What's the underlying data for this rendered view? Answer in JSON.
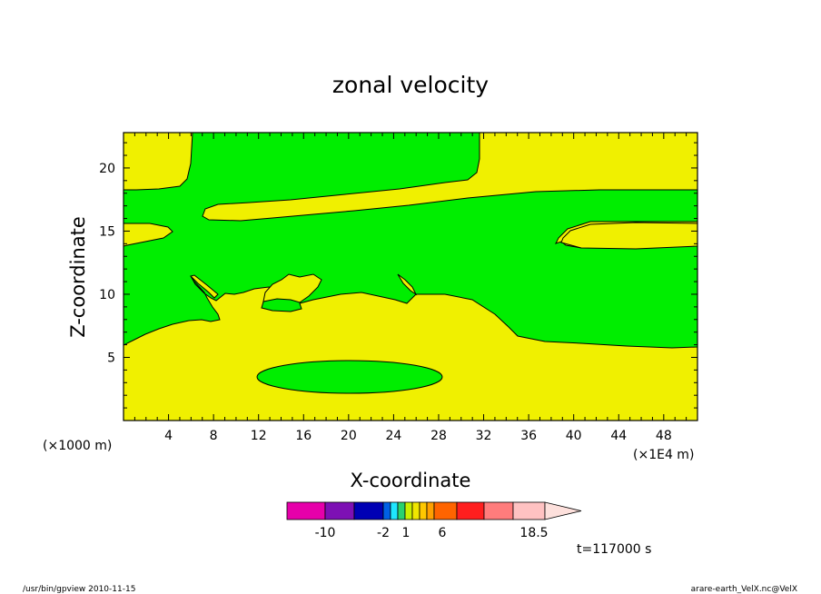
{
  "chart_data": {
    "type": "contour",
    "title": "zonal velocity",
    "xlabel": "X-coordinate",
    "ylabel": "Z-coordinate",
    "x_scale_note": "(×1E4 m)",
    "y_scale_note": "(×1000 m)",
    "x_ticks": [
      4,
      8,
      12,
      16,
      20,
      24,
      28,
      32,
      36,
      40,
      44,
      48
    ],
    "y_ticks": [
      5,
      10,
      15,
      20
    ],
    "xlim": [
      0,
      51
    ],
    "ylim": [
      0,
      22.8
    ],
    "time_label": "t=117000 s",
    "colorbar": {
      "colors": [
        "#e600aa",
        "#7d10b4",
        "#0000b4",
        "#0060e6",
        "#1ee6ff",
        "#28d26e",
        "#c8f000",
        "#f0e600",
        "#ffc800",
        "#ffa000",
        "#ff6400",
        "#ff1e1e",
        "#ff7c7c",
        "#ffc2c2",
        "#fde0dc"
      ],
      "labels": [
        "-10",
        "-2",
        "1",
        "6",
        "18.5"
      ]
    },
    "fill_colors": {
      "background": "#f0f000",
      "region": "#00ee00"
    }
  },
  "footer": {
    "left": "/usr/bin/gpview   2010-11-15",
    "right": "arare-earth_VelX.nc@VelX"
  }
}
